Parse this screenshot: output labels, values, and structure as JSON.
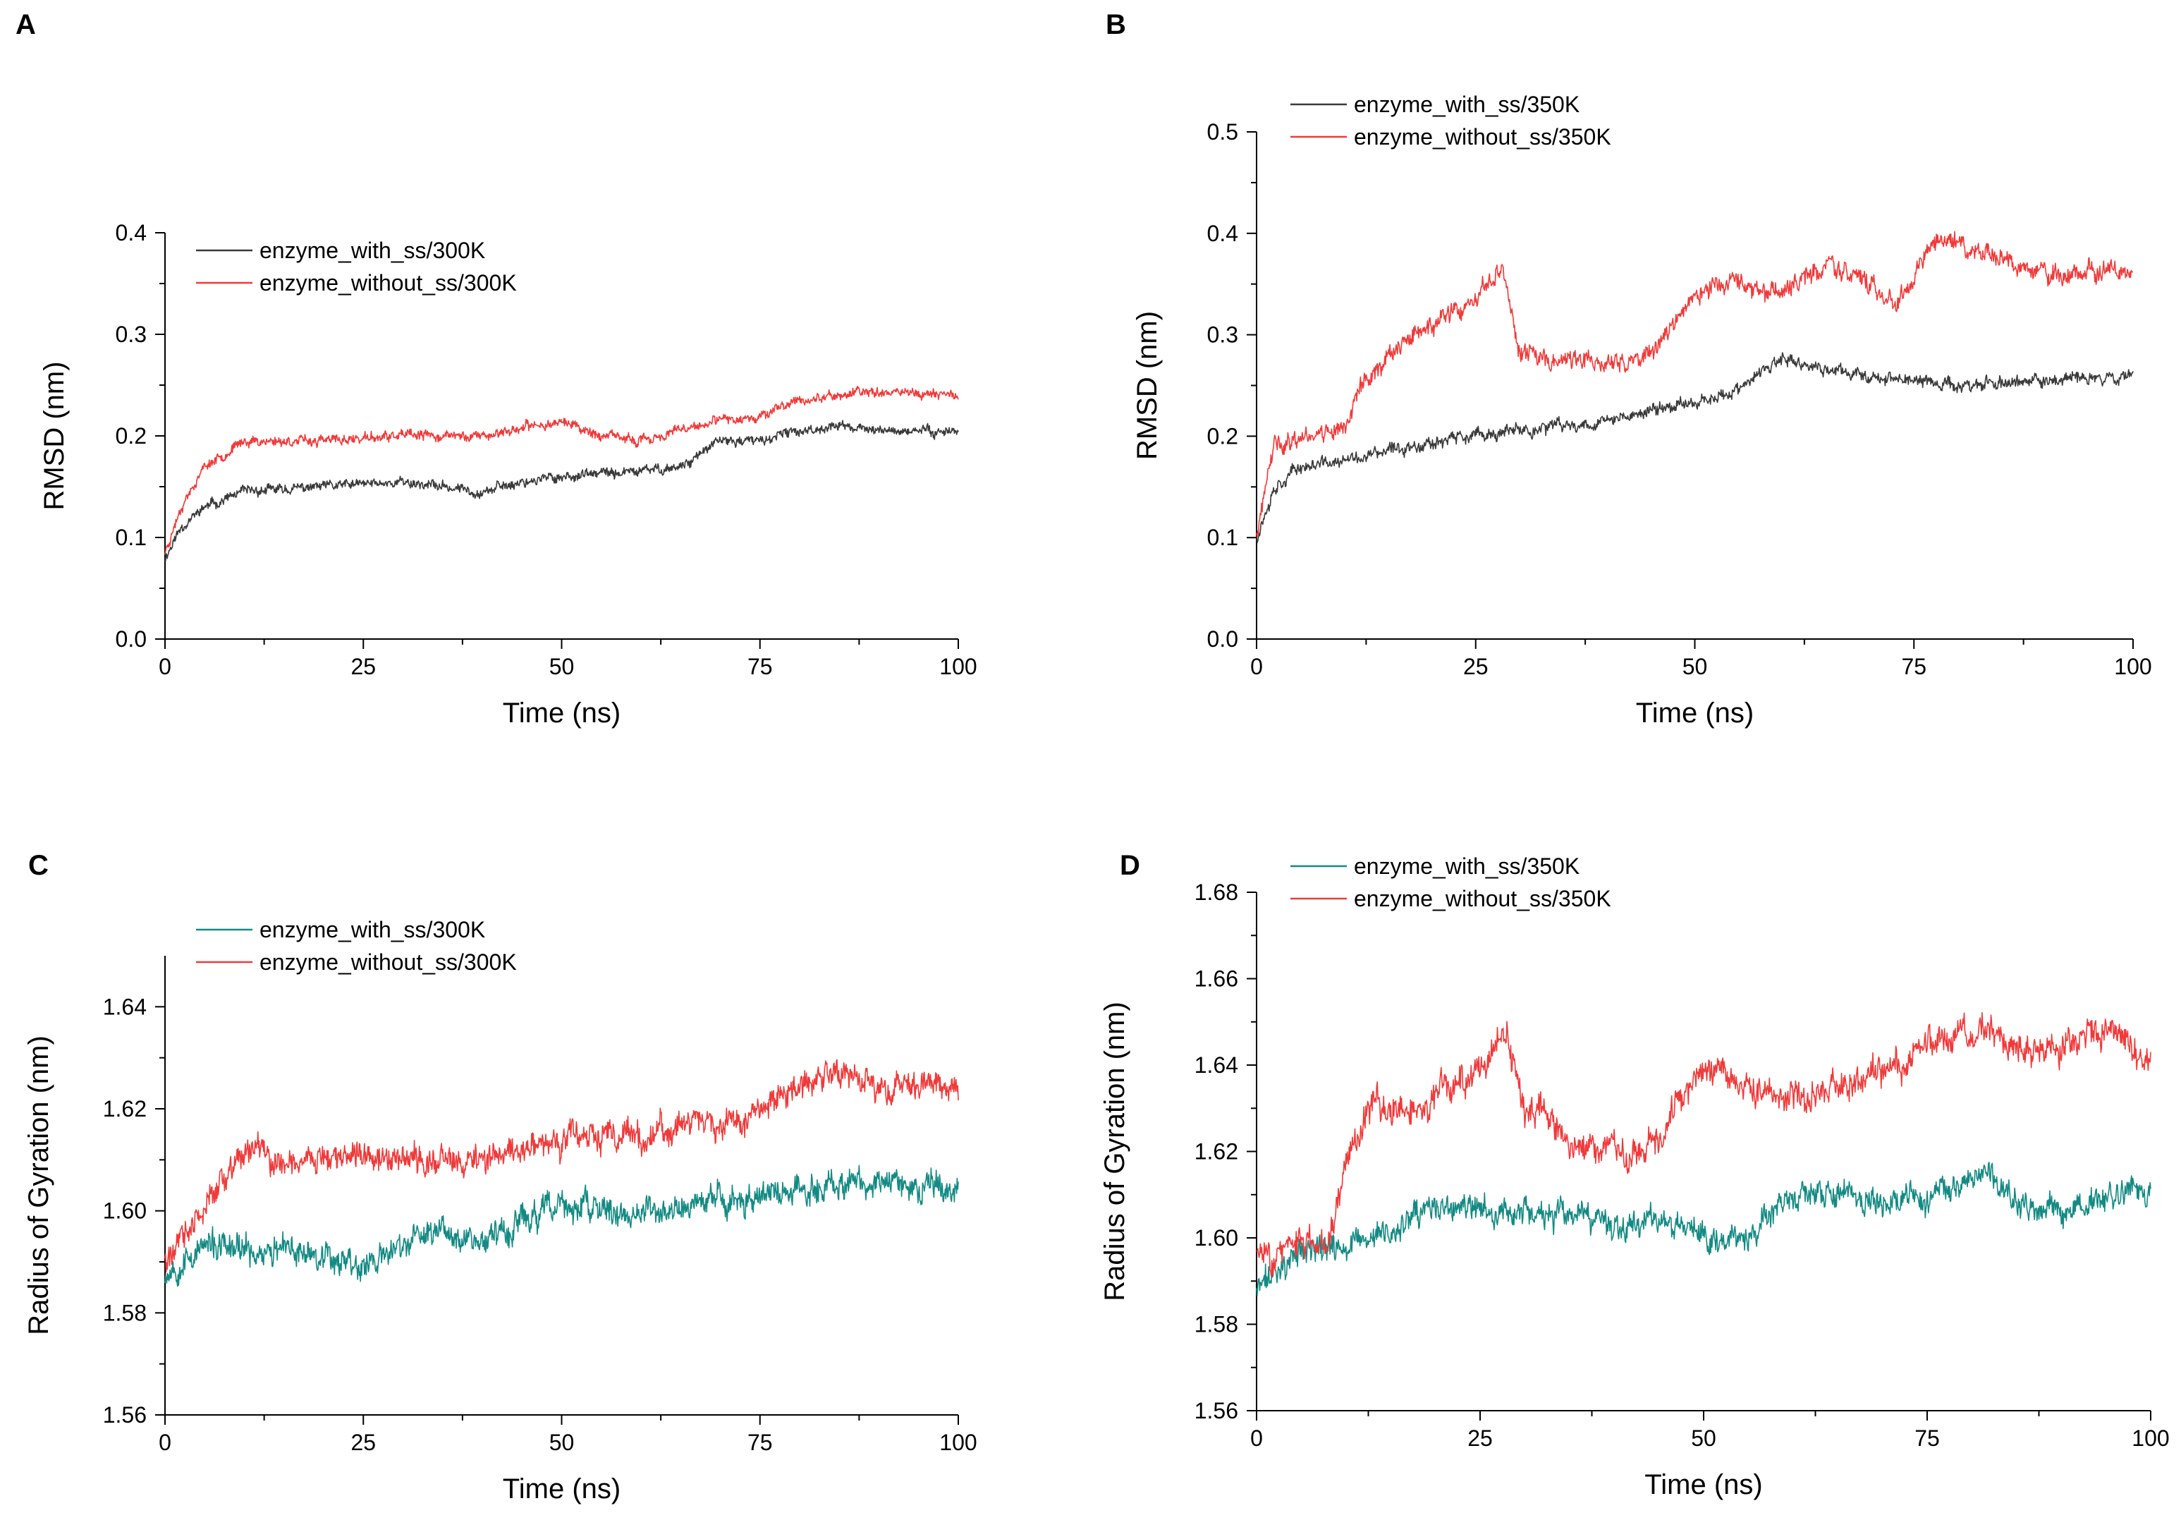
{
  "chart_data": [
    {
      "panel": "A",
      "type": "line",
      "xlabel": "Time (ns)",
      "ylabel": "RMSD (nm)",
      "xlim": [
        0,
        100
      ],
      "ylim": [
        0.0,
        0.4
      ],
      "xticks": [
        0,
        25,
        50,
        75,
        100
      ],
      "xtick_labels": [
        "0",
        "25",
        "50",
        "75",
        "100"
      ],
      "yticks": [
        0.0,
        0.1,
        0.2,
        0.3,
        0.4
      ],
      "ytick_labels": [
        "0.0",
        "0.1",
        "0.2",
        "0.3",
        "0.4"
      ],
      "legend_position": "top-left",
      "series": [
        {
          "name": "enzyme_with_ss/300K",
          "color": "#3a3a3a",
          "noise": 0.006,
          "seed": 11,
          "x": [
            0,
            2,
            5,
            10,
            20,
            30,
            40,
            45,
            50,
            60,
            65,
            70,
            75,
            80,
            85,
            90,
            100
          ],
          "y": [
            0.08,
            0.11,
            0.13,
            0.145,
            0.15,
            0.155,
            0.145,
            0.155,
            0.16,
            0.165,
            0.17,
            0.195,
            0.195,
            0.205,
            0.21,
            0.205,
            0.205
          ]
        },
        {
          "name": "enzyme_without_ss/300K",
          "color": "#f03a3a",
          "noise": 0.006,
          "seed": 23,
          "x": [
            0,
            2,
            5,
            10,
            20,
            30,
            40,
            50,
            55,
            60,
            65,
            70,
            75,
            80,
            85,
            90,
            100
          ],
          "y": [
            0.085,
            0.13,
            0.17,
            0.195,
            0.195,
            0.2,
            0.2,
            0.215,
            0.2,
            0.195,
            0.205,
            0.215,
            0.22,
            0.235,
            0.24,
            0.245,
            0.24
          ]
        }
      ]
    },
    {
      "panel": "B",
      "type": "line",
      "xlabel": "Time (ns)",
      "ylabel": "RMSD (nm)",
      "xlim": [
        0,
        100
      ],
      "ylim": [
        0.0,
        0.5
      ],
      "xticks": [
        0,
        25,
        50,
        75,
        100
      ],
      "xtick_labels": [
        "0",
        "25",
        "50",
        "75",
        "100"
      ],
      "yticks": [
        0.0,
        0.1,
        0.2,
        0.3,
        0.4,
        0.5
      ],
      "ytick_labels": [
        "0.0",
        "0.1",
        "0.2",
        "0.3",
        "0.4",
        "0.5"
      ],
      "legend_position": "top-left",
      "series": [
        {
          "name": "enzyme_with_ss/350K",
          "color": "#3a3a3a",
          "noise": 0.008,
          "seed": 37,
          "x": [
            0,
            2,
            5,
            10,
            20,
            30,
            40,
            50,
            55,
            58,
            60,
            65,
            70,
            75,
            80,
            90,
            100
          ],
          "y": [
            0.1,
            0.15,
            0.17,
            0.175,
            0.195,
            0.205,
            0.215,
            0.235,
            0.245,
            0.265,
            0.275,
            0.265,
            0.26,
            0.255,
            0.25,
            0.255,
            0.26
          ]
        },
        {
          "name": "enzyme_without_ss/350K",
          "color": "#f03a3a",
          "noise": 0.012,
          "seed": 41,
          "x": [
            0,
            2,
            5,
            10,
            12,
            15,
            20,
            25,
            28,
            30,
            32,
            40,
            45,
            48,
            52,
            60,
            65,
            70,
            73,
            78,
            85,
            90,
            100
          ],
          "y": [
            0.1,
            0.19,
            0.2,
            0.21,
            0.25,
            0.28,
            0.31,
            0.33,
            0.37,
            0.28,
            0.28,
            0.27,
            0.28,
            0.32,
            0.35,
            0.34,
            0.37,
            0.35,
            0.33,
            0.4,
            0.37,
            0.36,
            0.36
          ]
        }
      ]
    },
    {
      "panel": "C",
      "type": "line",
      "xlabel": "Time (ns)",
      "ylabel": "Radius of Gyration (nm)",
      "xlim": [
        0,
        100
      ],
      "ylim": [
        1.56,
        1.65
      ],
      "xticks": [
        0,
        25,
        50,
        75,
        100
      ],
      "xtick_labels": [
        "0",
        "25",
        "50",
        "75",
        "100"
      ],
      "yticks": [
        1.56,
        1.58,
        1.6,
        1.62,
        1.64
      ],
      "ytick_labels": [
        "1.56",
        "1.58",
        "1.60",
        "1.62",
        "1.64"
      ],
      "legend_position": "top-left",
      "series": [
        {
          "name": "enzyme_with_ss/300K",
          "color": "#138a83",
          "noise": 0.0035,
          "seed": 53,
          "x": [
            0,
            5,
            10,
            20,
            25,
            30,
            35,
            40,
            45,
            50,
            60,
            70,
            75,
            80,
            85,
            90,
            100
          ],
          "y": [
            1.588,
            1.593,
            1.592,
            1.592,
            1.589,
            1.593,
            1.597,
            1.594,
            1.598,
            1.601,
            1.599,
            1.602,
            1.603,
            1.604,
            1.606,
            1.605,
            1.605
          ]
        },
        {
          "name": "enzyme_without_ss/300K",
          "color": "#f03a3a",
          "noise": 0.0035,
          "seed": 61,
          "x": [
            0,
            5,
            10,
            15,
            20,
            30,
            40,
            50,
            60,
            70,
            75,
            80,
            85,
            90,
            100
          ],
          "y": [
            1.59,
            1.6,
            1.612,
            1.609,
            1.611,
            1.61,
            1.61,
            1.614,
            1.615,
            1.618,
            1.619,
            1.625,
            1.627,
            1.624,
            1.624
          ]
        }
      ]
    },
    {
      "panel": "D",
      "type": "line",
      "xlabel": "Time (ns)",
      "ylabel": "Radius of Gyration (nm)",
      "xlim": [
        0,
        100
      ],
      "ylim": [
        1.56,
        1.68
      ],
      "xticks": [
        0,
        25,
        50,
        75,
        100
      ],
      "xtick_labels": [
        "0",
        "25",
        "50",
        "75",
        "100"
      ],
      "yticks": [
        1.56,
        1.58,
        1.6,
        1.62,
        1.64,
        1.66,
        1.68
      ],
      "ytick_labels": [
        "1.56",
        "1.58",
        "1.60",
        "1.62",
        "1.64",
        "1.66",
        "1.68"
      ],
      "legend_position": "top-left",
      "series": [
        {
          "name": "enzyme_with_ss/350K",
          "color": "#138a83",
          "noise": 0.004,
          "seed": 71,
          "x": [
            0,
            2,
            5,
            10,
            15,
            20,
            25,
            30,
            40,
            45,
            50,
            55,
            60,
            65,
            70,
            75,
            80,
            82,
            85,
            90,
            95,
            100
          ],
          "y": [
            1.588,
            1.592,
            1.597,
            1.598,
            1.601,
            1.607,
            1.606,
            1.606,
            1.603,
            1.605,
            1.601,
            1.6,
            1.609,
            1.61,
            1.608,
            1.61,
            1.612,
            1.616,
            1.607,
            1.606,
            1.609,
            1.612
          ]
        },
        {
          "name": "enzyme_without_ss/350K",
          "color": "#f03a3a",
          "noise": 0.0045,
          "seed": 83,
          "x": [
            0,
            5,
            8,
            10,
            13,
            16,
            20,
            25,
            28,
            30,
            32,
            35,
            38,
            42,
            45,
            48,
            52,
            55,
            60,
            70,
            75,
            80,
            85,
            90,
            95,
            100
          ],
          "y": [
            1.596,
            1.598,
            1.6,
            1.618,
            1.632,
            1.628,
            1.632,
            1.64,
            1.645,
            1.628,
            1.63,
            1.622,
            1.62,
            1.62,
            1.624,
            1.635,
            1.64,
            1.636,
            1.632,
            1.638,
            1.645,
            1.648,
            1.645,
            1.644,
            1.65,
            1.638
          ]
        }
      ]
    }
  ]
}
